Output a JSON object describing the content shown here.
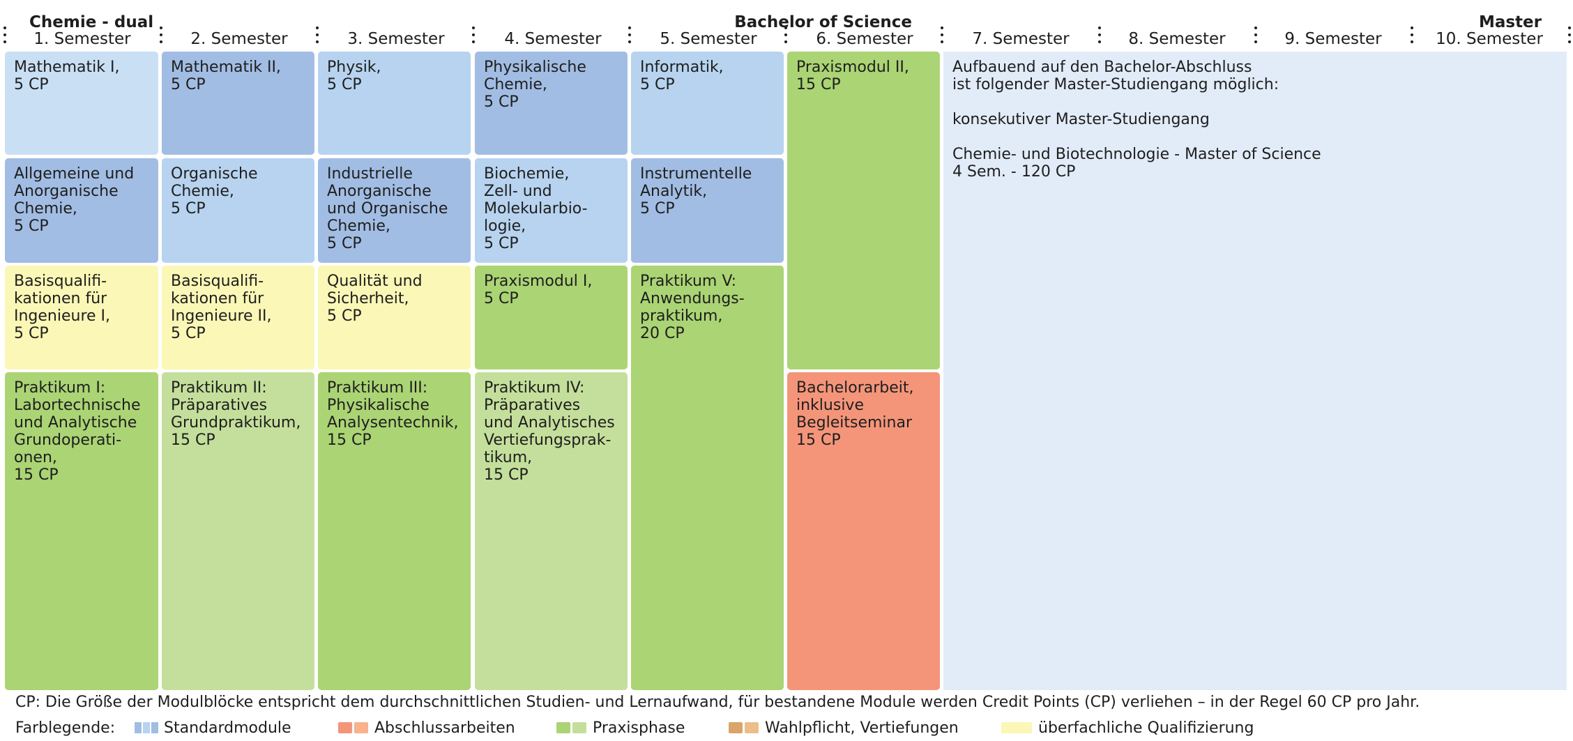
{
  "header": {
    "program": "Chemie - dual",
    "bachelor": "Bachelor of Science",
    "master": "Master",
    "semesters": [
      "1. Semester",
      "2. Semester",
      "3. Semester",
      "4. Semester",
      "5. Semester",
      "6. Semester",
      "7. Semester",
      "8. Semester",
      "9. Semester",
      "10. Semester"
    ]
  },
  "modules": [
    {
      "id": "mathe1",
      "text": "Mathematik I,\n5 CP",
      "color": "#c9dff4"
    },
    {
      "id": "allg-anorg",
      "text": "Allgemeine und\nAnorganische\nChemie,\n5 CP",
      "color": "#a2bde3"
    },
    {
      "id": "basis1",
      "text": "Basisqualifi-\nkationen für\nIngenieure I,\n5 CP",
      "color": "#fbf7b6"
    },
    {
      "id": "prak1",
      "text": "Praktikum I:\nLabortechnische\nund Analytische\nGrundoperati-\nonen,\n15 CP",
      "color": "#abd474"
    },
    {
      "id": "mathe2",
      "text": "Mathematik II,\n5 CP",
      "color": "#a2bde3"
    },
    {
      "id": "org-chemie",
      "text": "Organische\nChemie,\n5 CP",
      "color": "#b7d3ef"
    },
    {
      "id": "basis2",
      "text": "Basisqualifi-\nkationen für\nIngenieure II,\n5 CP",
      "color": "#fbf7b6"
    },
    {
      "id": "prak2",
      "text": "Praktikum II:\nPräparatives\nGrundpraktikum,\n15 CP",
      "color": "#c4df9b"
    },
    {
      "id": "physik",
      "text": "Physik,\n5 CP",
      "color": "#b7d3ef"
    },
    {
      "id": "industrielle",
      "text": "Industrielle\nAnorganische\nund Organische\nChemie,\n5 CP",
      "color": "#a2bde3"
    },
    {
      "id": "qualitaet",
      "text": "Qualität und\nSicherheit,\n5 CP",
      "color": "#fbf7b6"
    },
    {
      "id": "prak3",
      "text": "Praktikum III:\nPhysikalische\nAnalysentechnik,\n15 CP",
      "color": "#abd474"
    },
    {
      "id": "physchem",
      "text": "Physikalische\nChemie,\n5 CP",
      "color": "#a2bde3"
    },
    {
      "id": "biochemie",
      "text": "Biochemie,\nZell- und\nMolekularbio-\nlogie,\n5 CP",
      "color": "#b7d3ef"
    },
    {
      "id": "praxis1",
      "text": "Praxismodul I,\n5 CP",
      "color": "#abd474"
    },
    {
      "id": "prak4",
      "text": "Praktikum IV:\nPräparatives\nund Analytisches\nVertiefungsprak-\ntikum,\n15 CP",
      "color": "#c4df9b"
    },
    {
      "id": "informatik",
      "text": "Informatik,\n5 CP",
      "color": "#b7d3ef"
    },
    {
      "id": "instrumentelle",
      "text": "Instrumentelle\nAnalytik,\n5 CP",
      "color": "#a2bde3"
    },
    {
      "id": "prak5",
      "text": "Praktikum V:\nAnwendungs-\npraktikum,\n20 CP",
      "color": "#abd474"
    },
    {
      "id": "praxis2",
      "text": "Praxismodul II,\n15 CP",
      "color": "#abd474"
    },
    {
      "id": "bachelorarbeit",
      "text": "Bachelorarbeit,\ninklusive\nBegleitseminar\n15 CP",
      "color": "#f4957a"
    },
    {
      "id": "master",
      "text": "Aufbauend auf den Bachelor-Abschluss\nist folgender Master-Studiengang möglich:\n\nkonsekutiver Master-Studiengang\n\nChemie- und Biotechnologie - Master of Science\n4 Sem. - 120 CP",
      "color": "#e2ecf9"
    }
  ],
  "footer": {
    "cp_note": "CP: Die Größe der Modulblöcke entspricht dem durchschnittlichen Studien- und Lernaufwand, für bestandene Module werden Credit Points (CP) verliehen – in der Regel 60 CP pro Jahr.",
    "legend_title": "Farblegende:",
    "legend": [
      {
        "label": "Standardmodule",
        "colors": [
          "#a2bde3",
          "#b7d3ef",
          "#c9dff4"
        ]
      },
      {
        "label": "Abschlussarbeiten",
        "colors": [
          "#f4957a",
          "#f8b28c"
        ]
      },
      {
        "label": "Praxisphase",
        "colors": [
          "#abd474",
          "#c4df9b"
        ]
      },
      {
        "label": "Wahlpflicht, Vertiefungen",
        "colors": [
          "#d9a56a",
          "#ecbe8a"
        ]
      },
      {
        "label": "überfachliche Qualifizierung",
        "colors": [
          "#fbf7b6"
        ]
      }
    ]
  }
}
